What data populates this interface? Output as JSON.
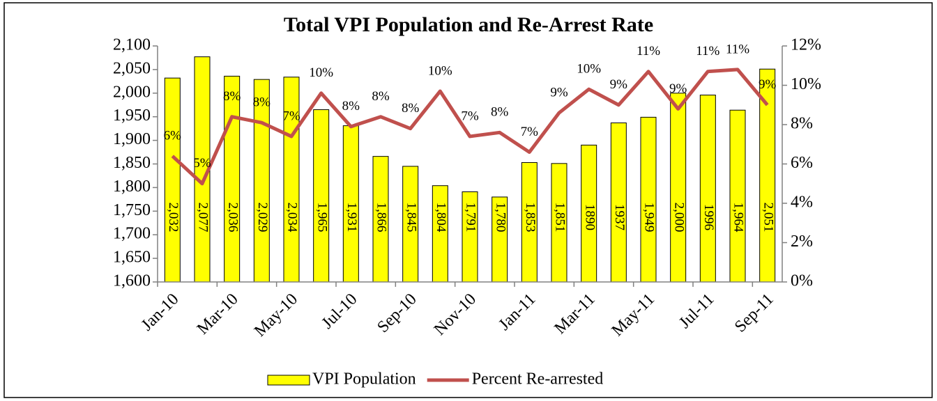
{
  "chart_data": {
    "type": "bar-line",
    "title": "Total VPI Population and Re-Arrest  Rate",
    "categories": [
      "Jan-10",
      null,
      "Mar-10",
      null,
      "May-10",
      null,
      "Jul-10",
      null,
      "Sep-10",
      null,
      "Nov-10",
      null,
      "Jan-11",
      null,
      "Mar-11",
      null,
      "May-11",
      null,
      "Jul-11",
      null,
      "Sep-11"
    ],
    "series": [
      {
        "name": "VPI Population",
        "type": "bar",
        "color": "#ffff00",
        "axis": "y",
        "values": [
          2032,
          2077,
          2036,
          2029,
          2034,
          1965,
          1931,
          1866,
          1845,
          1804,
          1791,
          1780,
          1853,
          1851,
          1890,
          1937,
          1949,
          2000,
          1996,
          1964,
          2051
        ],
        "value_labels": [
          "2,032",
          "2,077",
          "2,036",
          "2,029",
          "2,034",
          "1,965",
          "1,931",
          "1,866",
          "1,845",
          "1,804",
          "1,791",
          "1,780",
          "1,853",
          "1,851",
          "1890",
          "1937",
          "1,949",
          "2,000",
          "1996",
          "1,964",
          "2,051"
        ]
      },
      {
        "name": "Percent Re-arrested",
        "type": "line",
        "color": "#c0504d",
        "axis": "y2",
        "values": [
          6.4,
          5.0,
          8.4,
          8.1,
          7.4,
          9.6,
          7.9,
          8.4,
          7.8,
          9.7,
          7.4,
          7.6,
          6.6,
          8.6,
          9.8,
          9.0,
          10.7,
          8.8,
          10.7,
          10.8,
          9.0
        ],
        "value_labels": [
          "6%",
          "5%",
          "8%",
          "8%",
          "7%",
          "10%",
          "8%",
          "8%",
          "8%",
          "10%",
          "7%",
          "8%",
          "7%",
          "9%",
          "10%",
          "9%",
          "11%",
          "9%",
          "11%",
          "11%",
          "9%"
        ]
      }
    ],
    "ylim": [
      1600,
      2100
    ],
    "yticks": [
      {
        "value": 1600,
        "label": "1,600"
      },
      {
        "value": 1650,
        "label": "1,650"
      },
      {
        "value": 1700,
        "label": "1,700"
      },
      {
        "value": 1750,
        "label": "1,750"
      },
      {
        "value": 1800,
        "label": "1,800"
      },
      {
        "value": 1850,
        "label": "1,850"
      },
      {
        "value": 1900,
        "label": "1,900"
      },
      {
        "value": 1950,
        "label": "1,950"
      },
      {
        "value": 2000,
        "label": "2,000"
      },
      {
        "value": 2050,
        "label": "2,050"
      },
      {
        "value": 2100,
        "label": "2,100"
      }
    ],
    "y2lim": [
      0,
      12
    ],
    "y2ticks": [
      {
        "value": 0,
        "label": "0%"
      },
      {
        "value": 2,
        "label": "2%"
      },
      {
        "value": 4,
        "label": "4%"
      },
      {
        "value": 6,
        "label": "6%"
      },
      {
        "value": 8,
        "label": "8%"
      },
      {
        "value": 10,
        "label": "10%"
      },
      {
        "value": 12,
        "label": "12%"
      }
    ],
    "legend": "bottom"
  }
}
